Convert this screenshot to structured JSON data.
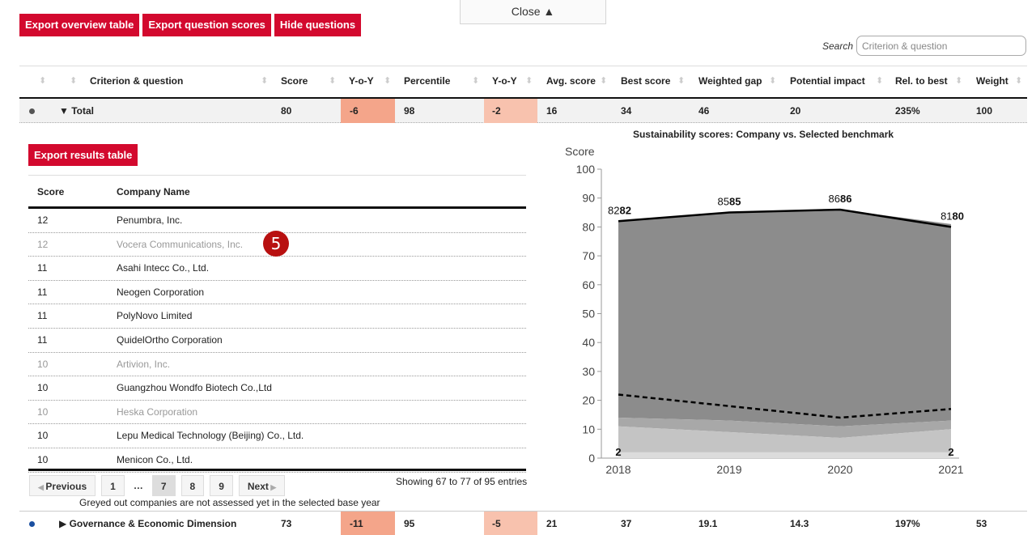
{
  "toolbar": {
    "export_overview": "Export overview table",
    "export_scores": "Export question scores",
    "hide_questions": "Hide questions",
    "close": "Close ▲"
  },
  "search": {
    "label": "Search",
    "placeholder": "Criterion & question"
  },
  "headers": [
    "Criterion & question",
    "Score",
    "Y-o-Y",
    "Percentile",
    "Y-o-Y",
    "Avg. score",
    "Best score",
    "Weighted gap",
    "Potential impact",
    "Rel. to best",
    "Weight"
  ],
  "total_row": {
    "label": "▼ Total",
    "values": [
      "80",
      "-6",
      "98",
      "-2",
      "16",
      "34",
      "46",
      "20",
      "235%",
      "100"
    ]
  },
  "gov_row": {
    "label": "▶ Governance & Economic Dimension",
    "values": [
      "73",
      "-11",
      "95",
      "-5",
      "21",
      "37",
      "19.1",
      "14.3",
      "197%",
      "53"
    ]
  },
  "results": {
    "export_label": "Export results table",
    "col_score": "Score",
    "col_company": "Company Name",
    "rows": [
      {
        "score": "12",
        "name": "Penumbra, Inc.",
        "grey": false
      },
      {
        "score": "12",
        "name": "Vocera Communications, Inc.",
        "grey": true
      },
      {
        "score": "11",
        "name": "Asahi Intecc Co., Ltd.",
        "grey": false
      },
      {
        "score": "11",
        "name": "Neogen Corporation",
        "grey": false
      },
      {
        "score": "11",
        "name": "PolyNovo Limited",
        "grey": false
      },
      {
        "score": "11",
        "name": "QuidelOrtho Corporation",
        "grey": false
      },
      {
        "score": "10",
        "name": "Artivion, Inc.",
        "grey": true
      },
      {
        "score": "10",
        "name": "Guangzhou Wondfo Biotech Co.,Ltd",
        "grey": false
      },
      {
        "score": "10",
        "name": "Heska Corporation",
        "grey": true
      },
      {
        "score": "10",
        "name": "Lepu Medical Technology (Beijing) Co., Ltd.",
        "grey": false
      },
      {
        "score": "10",
        "name": "Menicon Co., Ltd.",
        "grey": false
      }
    ],
    "badge": "5",
    "pager": {
      "prev": "Previous",
      "next": "Next",
      "pages": [
        "1",
        "…",
        "7",
        "8",
        "9"
      ],
      "active": "7"
    },
    "showing": "Showing 67 to 77 of 95 entries",
    "note": "Greyed out companies are not assessed yet in the selected base year"
  },
  "chart_data": {
    "type": "area",
    "title": "Sustainability scores: Company vs. Selected benchmark",
    "ylabel": "Score",
    "xlabel": "",
    "ylim": [
      0,
      100
    ],
    "yticks": [
      0,
      10,
      20,
      30,
      40,
      50,
      60,
      70,
      80,
      90,
      100
    ],
    "x": [
      "2018",
      "2019",
      "2020",
      "2021"
    ],
    "company_line": [
      82,
      85,
      86,
      80
    ],
    "benchmark_line": [
      22,
      18,
      14,
      17
    ],
    "area_top": [
      82,
      85,
      86,
      81
    ],
    "band_1": [
      14,
      13,
      11,
      13
    ],
    "band_2": [
      11,
      9,
      7,
      10
    ],
    "band_3": [
      2,
      2,
      2,
      2
    ],
    "labels": [
      {
        "small": "82",
        "big": "82"
      },
      {
        "small": "85",
        "big": "85"
      },
      {
        "small": "86",
        "big": "86"
      },
      {
        "small": "81",
        "big": "80"
      }
    ],
    "bottom_labels": [
      "2",
      "",
      "",
      "2"
    ],
    "colors": {
      "top_area": "#8c8c8c",
      "band_mid": "#a8a8a8",
      "band_light": "#c4c4c4",
      "band_lightest": "#dcdcdc",
      "company": "#000000"
    }
  }
}
